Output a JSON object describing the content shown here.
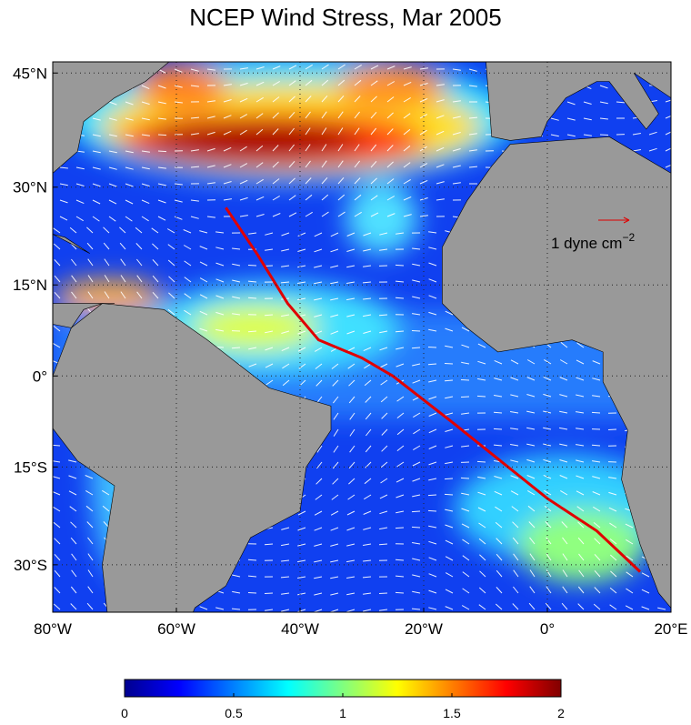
{
  "map": {
    "title": "NCEP Wind Stress, Mar 2005",
    "xlim": [
      -80,
      20
    ],
    "ylim": [
      -36.6,
      46.3
    ],
    "xticks": [
      {
        "value": -80,
        "label": "80°W"
      },
      {
        "value": -60,
        "label": "60°W"
      },
      {
        "value": -40,
        "label": "40°W"
      },
      {
        "value": -20,
        "label": "20°W"
      },
      {
        "value": 0,
        "label": "0°"
      },
      {
        "value": 20,
        "label": "20°E"
      }
    ],
    "yticks": [
      {
        "value": 45,
        "label": "45°N"
      },
      {
        "value": 30,
        "label": "30°N"
      },
      {
        "value": 15,
        "label": "15°N"
      },
      {
        "value": 0,
        "label": "0°"
      },
      {
        "value": -15,
        "label": "15°S"
      },
      {
        "value": -30,
        "label": "30°S"
      }
    ],
    "grid": true,
    "annotation": {
      "text": "1 dyne cm",
      "superscript": "−2"
    },
    "colorbar": {
      "clim": [
        0,
        2
      ],
      "ticks": [
        0,
        0.5,
        1,
        1.5,
        2
      ],
      "colormap": "jet"
    }
  }
}
